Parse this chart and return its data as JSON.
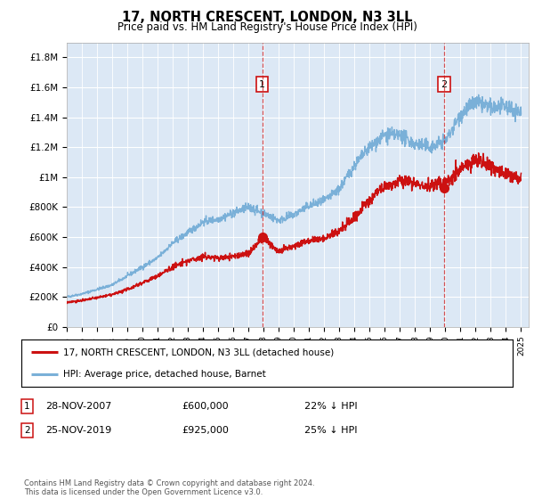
{
  "title": "17, NORTH CRESCENT, LONDON, N3 3LL",
  "subtitle": "Price paid vs. HM Land Registry's House Price Index (HPI)",
  "legend_line1": "17, NORTH CRESCENT, LONDON, N3 3LL (detached house)",
  "legend_line2": "HPI: Average price, detached house, Barnet",
  "annotation1_date": "28-NOV-2007",
  "annotation1_price": "£600,000",
  "annotation1_pct": "22% ↓ HPI",
  "annotation2_date": "25-NOV-2019",
  "annotation2_price": "£925,000",
  "annotation2_pct": "25% ↓ HPI",
  "footer": "Contains HM Land Registry data © Crown copyright and database right 2024.\nThis data is licensed under the Open Government Licence v3.0.",
  "ylim": [
    0,
    1900000
  ],
  "yticks": [
    0,
    200000,
    400000,
    600000,
    800000,
    1000000,
    1200000,
    1400000,
    1600000,
    1800000
  ],
  "ytick_labels": [
    "£0",
    "£200K",
    "£400K",
    "£600K",
    "£800K",
    "£1M",
    "£1.2M",
    "£1.4M",
    "£1.6M",
    "£1.8M"
  ],
  "hpi_color": "#7ab0d8",
  "price_color": "#cc1111",
  "bg_color": "#dce8f5",
  "grid_color": "#ffffff",
  "purchase1_year": 2007.9,
  "purchase1_value": 600000,
  "purchase2_year": 2019.9,
  "purchase2_value": 925000,
  "hpi_years": [
    1995,
    1996,
    1997,
    1998,
    1999,
    2000,
    2001,
    2002,
    2003,
    2004,
    2005,
    2006,
    2007,
    2008,
    2009,
    2010,
    2011,
    2012,
    2013,
    2014,
    2015,
    2016,
    2017,
    2018,
    2019,
    2020,
    2021,
    2022,
    2023,
    2024,
    2025
  ],
  "hpi_values": [
    200000,
    220000,
    250000,
    280000,
    340000,
    400000,
    460000,
    560000,
    630000,
    700000,
    720000,
    760000,
    800000,
    760000,
    710000,
    750000,
    810000,
    840000,
    920000,
    1080000,
    1200000,
    1280000,
    1280000,
    1220000,
    1200000,
    1240000,
    1420000,
    1500000,
    1460000,
    1470000,
    1430000
  ],
  "price_years": [
    1995,
    1996,
    1997,
    1998,
    1999,
    2000,
    2001,
    2002,
    2003,
    2004,
    2005,
    2006,
    2007,
    2008,
    2009,
    2010,
    2011,
    2012,
    2013,
    2014,
    2015,
    2016,
    2017,
    2018,
    2019,
    2020,
    2021,
    2022,
    2023,
    2024,
    2025
  ],
  "price_values": [
    165000,
    175000,
    195000,
    215000,
    250000,
    295000,
    340000,
    400000,
    440000,
    470000,
    460000,
    470000,
    490000,
    600000,
    500000,
    540000,
    580000,
    590000,
    640000,
    730000,
    850000,
    940000,
    970000,
    960000,
    940000,
    970000,
    1050000,
    1120000,
    1080000,
    1020000,
    990000
  ]
}
